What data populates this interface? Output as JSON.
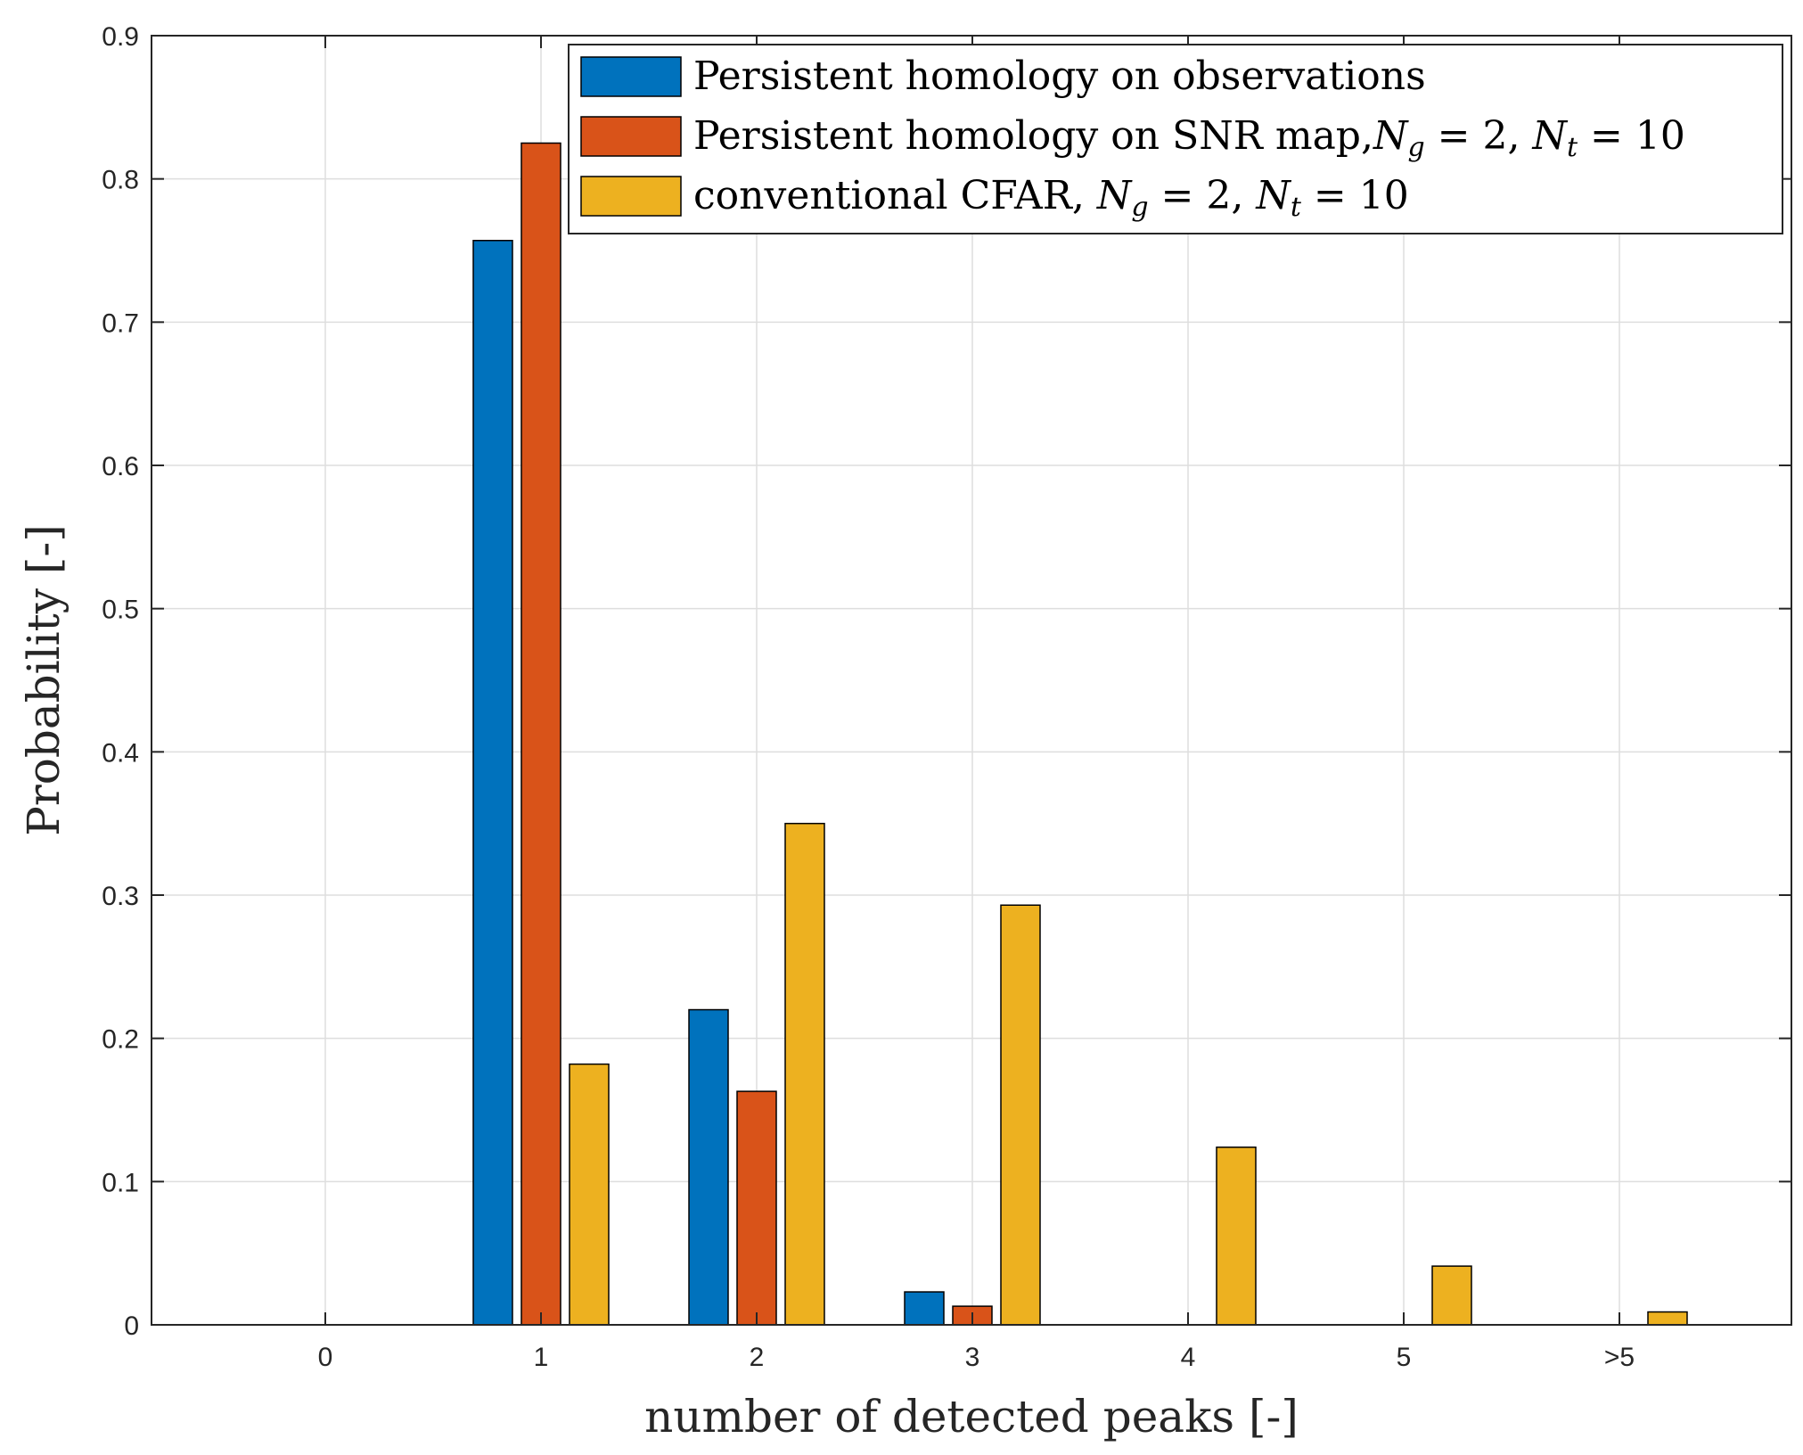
{
  "chart_data": {
    "type": "bar",
    "title": "",
    "xlabel": "number of detected peaks [-]",
    "ylabel": "Probability [-]",
    "categories": [
      "0",
      "1",
      "2",
      "3",
      "4",
      "5",
      ">5"
    ],
    "ylim": [
      0,
      0.9
    ],
    "yticks": [
      "0",
      "0.1",
      "0.2",
      "0.3",
      "0.4",
      "0.5",
      "0.6",
      "0.7",
      "0.8",
      "0.9"
    ],
    "grid": true,
    "legend_position": "top-right",
    "series": [
      {
        "name": "Persistent homology on observations",
        "color": "#0072BD",
        "values": [
          0,
          0.757,
          0.22,
          0.023,
          0,
          0,
          0
        ]
      },
      {
        "name": "Persistent homology on SNR map,N_g = 2, N_t = 10",
        "color": "#D95319",
        "values": [
          0,
          0.825,
          0.163,
          0.013,
          0,
          0,
          0
        ]
      },
      {
        "name": "conventional CFAR, N_g = 2, N_t = 10",
        "color": "#EDB120",
        "values": [
          0,
          0.182,
          0.35,
          0.293,
          0.124,
          0.041,
          0.009
        ]
      }
    ]
  },
  "legend": {
    "items": [
      {
        "text": "Persistent homology on observations",
        "math": []
      },
      {
        "text": "Persistent homology on SNR map,",
        "math": [
          "N",
          "g",
          " = 2, ",
          "N",
          "t",
          " = 10"
        ]
      },
      {
        "text": "conventional CFAR, ",
        "math": [
          "N",
          "g",
          " = 2, ",
          "N",
          "t",
          " = 10"
        ]
      }
    ]
  }
}
